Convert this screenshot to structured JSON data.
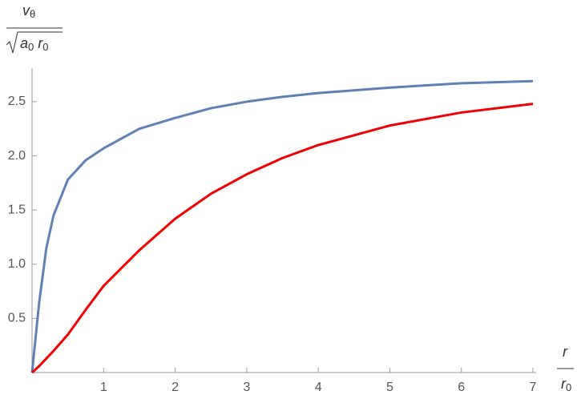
{
  "chart_data": {
    "type": "line",
    "y_label": {
      "numerator": {
        "base": "v",
        "sub": "θ"
      },
      "denominator": [
        {
          "base": "a",
          "sub": "0"
        },
        {
          "base": "r",
          "sub": "0"
        }
      ]
    },
    "x_label": {
      "numerator": "r",
      "denominator": {
        "base": "r",
        "sub": "0"
      }
    },
    "x": [
      0,
      0.1,
      0.2,
      0.3,
      0.5,
      0.75,
      1,
      1.5,
      2,
      2.5,
      3,
      3.5,
      4,
      5,
      6,
      7
    ],
    "series": [
      {
        "color": "#5e81b5",
        "values": [
          0,
          0.65,
          1.15,
          1.45,
          1.78,
          1.96,
          2.07,
          2.25,
          2.35,
          2.44,
          2.5,
          2.545,
          2.58,
          2.63,
          2.67,
          2.69
        ]
      },
      {
        "color": "#f00000",
        "values": [
          0,
          0.06,
          0.13,
          0.2,
          0.35,
          0.58,
          0.8,
          1.13,
          1.42,
          1.65,
          1.83,
          1.98,
          2.1,
          2.28,
          2.4,
          2.48
        ]
      }
    ],
    "xlim": [
      0,
      7
    ],
    "ylim": [
      0,
      2.81
    ],
    "xticks": [
      1,
      2,
      3,
      4,
      5,
      6,
      7
    ],
    "yticks": [
      0.5,
      {
        "value": 1,
        "label": "1.0"
      },
      1.5,
      {
        "value": 2,
        "label": "2.0"
      },
      2.5
    ]
  }
}
